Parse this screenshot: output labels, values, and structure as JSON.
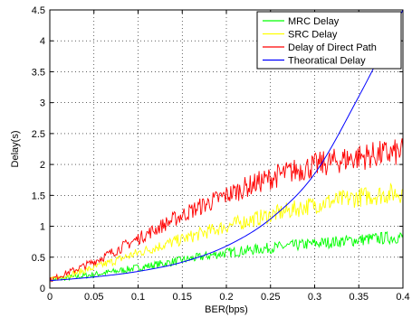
{
  "chart_data": {
    "type": "line",
    "xlabel": "BER(bps)",
    "ylabel": "Delay(s)",
    "xlim": [
      0,
      0.4
    ],
    "ylim": [
      0,
      4.5
    ],
    "xticks": [
      0,
      0.05,
      0.1,
      0.15,
      0.2,
      0.25,
      0.3,
      0.35,
      0.4
    ],
    "xtick_labels": [
      "0",
      "0.05",
      "0.1",
      "0.15",
      "0.2",
      "0.25",
      "0.3",
      "0.35",
      "0.4"
    ],
    "yticks": [
      0,
      0.5,
      1,
      1.5,
      2,
      2.5,
      3,
      3.5,
      4,
      4.5
    ],
    "ytick_labels": [
      "0",
      "0.5",
      "1",
      "1.5",
      "2",
      "2.5",
      "3",
      "3.5",
      "4",
      "4.5"
    ],
    "grid": true,
    "legend_position": "top-right",
    "series": [
      {
        "name": "MRC Delay",
        "color": "#00ff00",
        "noisy": true,
        "x": [
          0,
          0.05,
          0.1,
          0.15,
          0.2,
          0.25,
          0.3,
          0.35,
          0.4
        ],
        "y": [
          0.13,
          0.22,
          0.33,
          0.45,
          0.57,
          0.65,
          0.72,
          0.78,
          0.83
        ]
      },
      {
        "name": "SRC Delay",
        "color": "#ffff00",
        "noisy": true,
        "x": [
          0,
          0.05,
          0.1,
          0.15,
          0.2,
          0.25,
          0.3,
          0.35,
          0.4
        ],
        "y": [
          0.13,
          0.33,
          0.57,
          0.79,
          1.0,
          1.18,
          1.35,
          1.47,
          1.55
        ]
      },
      {
        "name": "Delay of Direct Path",
        "color": "#ff0000",
        "noisy": true,
        "x": [
          0,
          0.05,
          0.1,
          0.15,
          0.2,
          0.25,
          0.3,
          0.35,
          0.4
        ],
        "y": [
          0.13,
          0.43,
          0.8,
          1.18,
          1.5,
          1.78,
          1.98,
          2.12,
          2.2
        ]
      },
      {
        "name": "Theoratical Delay",
        "color": "#0000ff",
        "noisy": false,
        "x": [
          0,
          0.05,
          0.1,
          0.15,
          0.2,
          0.25,
          0.3,
          0.35,
          0.4
        ],
        "y": [
          0.12,
          0.18,
          0.27,
          0.42,
          0.68,
          1.12,
          1.85,
          3.1,
          4.5
        ]
      }
    ]
  }
}
